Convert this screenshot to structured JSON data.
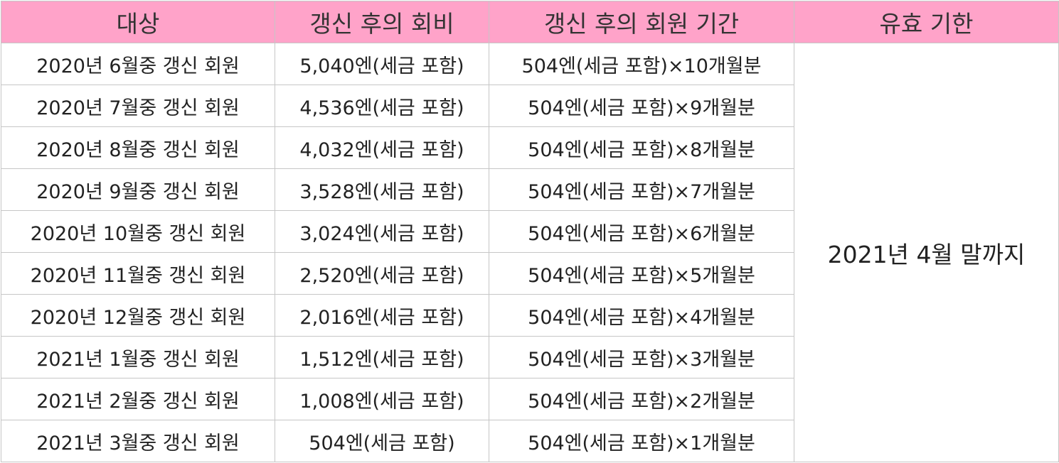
{
  "table": {
    "headers": [
      "대상",
      "갱신 후의 회비",
      "갱신 후의 회원 기간",
      "유효 기한"
    ],
    "rows": [
      {
        "target": "2020년 6월중 갱신 회원",
        "fee": "5,040엔(세금 포함)",
        "period": "504엔(세금 포함)×10개월분"
      },
      {
        "target": "2020년 7월중 갱신 회원",
        "fee": "4,536엔(세금 포함)",
        "period": "504엔(세금 포함)×9개월분"
      },
      {
        "target": "2020년 8월중 갱신 회원",
        "fee": "4,032엔(세금 포함)",
        "period": "504엔(세금 포함)×8개월분"
      },
      {
        "target": "2020년 9월중 갱신 회원",
        "fee": "3,528엔(세금 포함)",
        "period": "504엔(세금 포함)×7개월분"
      },
      {
        "target": "2020년 10월중 갱신 회원",
        "fee": "3,024엔(세금 포함)",
        "period": "504엔(세금 포함)×6개월분"
      },
      {
        "target": "2020년 11월중 갱신 회원",
        "fee": "2,520엔(세금 포함)",
        "period": "504엔(세금 포함)×5개월분"
      },
      {
        "target": "2020년 12월중 갱신 회원",
        "fee": "2,016엔(세금 포함)",
        "period": "504엔(세금 포함)×4개월분"
      },
      {
        "target": "2021년 1월중 갱신 회원",
        "fee": "1,512엔(세금 포함)",
        "period": "504엔(세금 포함)×3개월분"
      },
      {
        "target": "2021년 2월중 갱신 회원",
        "fee": "1,008엔(세금 포함)",
        "period": "504엔(세금 포함)×2개월분"
      },
      {
        "target": "2021년 3월중 갱신 회원",
        "fee": "504엔(세금 포함)",
        "period": "504엔(세금 포함)×1개월분"
      }
    ],
    "validity": "2021년 4월 말까지"
  },
  "colors": {
    "header_bg": "#ffa3c9",
    "border": "#c6c6c6"
  }
}
